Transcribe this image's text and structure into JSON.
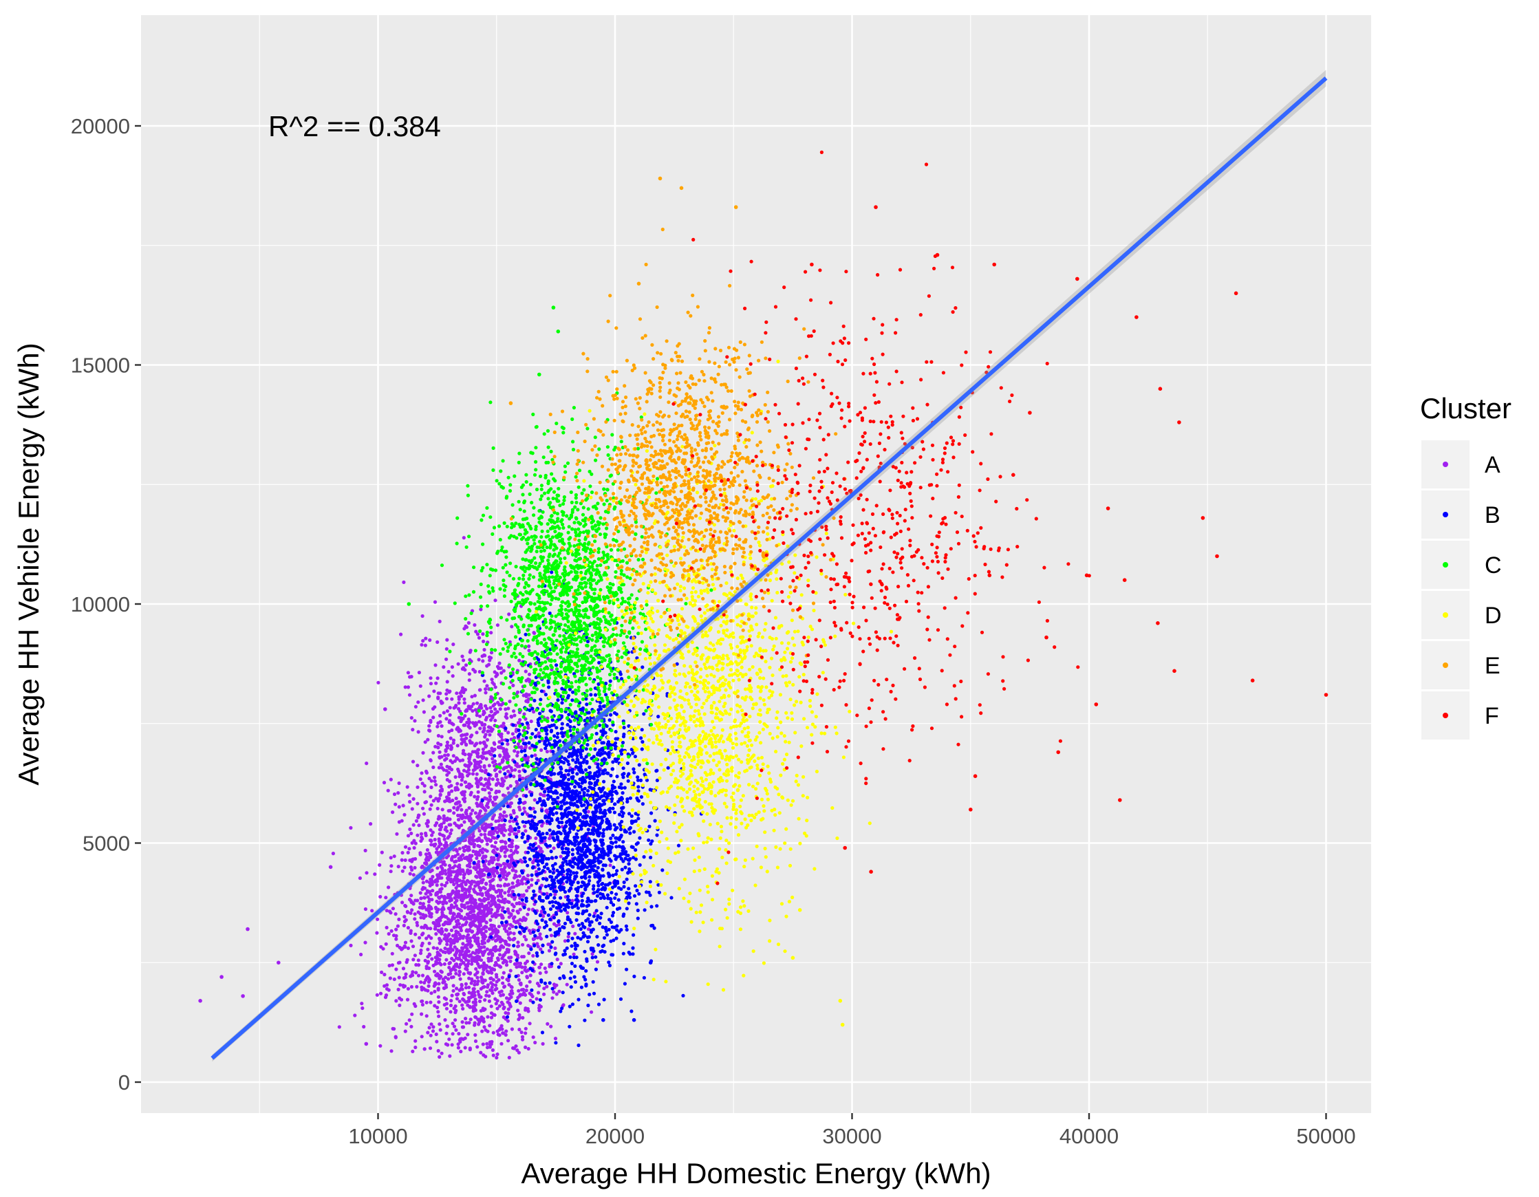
{
  "chart_data": {
    "type": "scatter",
    "title": "",
    "xlabel": "Average HH Domestic Energy (kWh)",
    "ylabel": "Average HH Vehicle Energy (kWh)",
    "xlim": [
      0,
      52000
    ],
    "ylim": [
      -1000,
      22000
    ],
    "x_ticks": [
      10000,
      20000,
      30000,
      40000,
      50000
    ],
    "y_ticks": [
      0,
      5000,
      10000,
      15000,
      20000
    ],
    "x_tick_labels": [
      "10000",
      "20000",
      "30000",
      "40000",
      "50000"
    ],
    "y_tick_labels": [
      "0",
      "5000",
      "10000",
      "15000",
      "20000"
    ],
    "grid": true,
    "legend": {
      "title": "Cluster",
      "placement": "right"
    },
    "annotation": {
      "text": "R^2 ==  0.384",
      "x": 5500,
      "y": 20000
    },
    "trend_line": {
      "x": [
        3000,
        50000
      ],
      "y": [
        500,
        21000
      ],
      "color": "#3366FF"
    },
    "series": [
      {
        "name": "A",
        "color": "#A020F0",
        "clusters": [
          {
            "cx": 14000,
            "cy": 3500,
            "sx": 1700,
            "sy": 1500,
            "n": 2400
          },
          {
            "cx": 14500,
            "cy": 7000,
            "sx": 1400,
            "sy": 1300,
            "n": 900
          }
        ],
        "points": [
          {
            "x": 2500,
            "y": 1700
          },
          {
            "x": 3400,
            "y": 2200
          },
          {
            "x": 4500,
            "y": 3200
          },
          {
            "x": 8000,
            "y": 4500
          },
          {
            "x": 10300,
            "y": 7800
          },
          {
            "x": 4300,
            "y": 1800
          },
          {
            "x": 9500,
            "y": 800
          },
          {
            "x": 5800,
            "y": 2500
          }
        ]
      },
      {
        "name": "B",
        "color": "#0000FF",
        "clusters": [
          {
            "cx": 18500,
            "cy": 5500,
            "sx": 1400,
            "sy": 1600,
            "n": 2000
          }
        ],
        "points": [
          {
            "x": 20800,
            "y": 1300
          },
          {
            "x": 19500,
            "y": 1300
          },
          {
            "x": 21500,
            "y": 2500
          }
        ]
      },
      {
        "name": "C",
        "color": "#00FF00",
        "clusters": [
          {
            "cx": 18000,
            "cy": 10000,
            "sx": 1600,
            "sy": 1500,
            "n": 1700
          }
        ],
        "points": [
          {
            "x": 17400,
            "y": 16200
          },
          {
            "x": 17600,
            "y": 15700
          },
          {
            "x": 16800,
            "y": 14800
          },
          {
            "x": 11300,
            "y": 10000
          }
        ]
      },
      {
        "name": "D",
        "color": "#FFFF00",
        "clusters": [
          {
            "cx": 24000,
            "cy": 8000,
            "sx": 2100,
            "sy": 2000,
            "n": 1600
          }
        ],
        "points": [
          {
            "x": 29600,
            "y": 1200
          },
          {
            "x": 29500,
            "y": 1700
          },
          {
            "x": 27500,
            "y": 2600
          },
          {
            "x": 27800,
            "y": 3600
          }
        ]
      },
      {
        "name": "E",
        "color": "#FFA500",
        "clusters": [
          {
            "cx": 23000,
            "cy": 12500,
            "sx": 2000,
            "sy": 1400,
            "n": 1300
          }
        ],
        "points": [
          {
            "x": 21900,
            "y": 18900
          },
          {
            "x": 22800,
            "y": 18700
          },
          {
            "x": 25100,
            "y": 18300
          },
          {
            "x": 15600,
            "y": 14200
          },
          {
            "x": 21000,
            "y": 16700
          }
        ]
      },
      {
        "name": "F",
        "color": "#FF0000",
        "clusters": [
          {
            "cx": 30500,
            "cy": 11800,
            "sx": 3300,
            "sy": 2300,
            "n": 650
          }
        ],
        "points": [
          {
            "x": 31000,
            "y": 18300
          },
          {
            "x": 33600,
            "y": 17300
          },
          {
            "x": 46200,
            "y": 16500
          },
          {
            "x": 50000,
            "y": 8100
          },
          {
            "x": 46900,
            "y": 8400
          },
          {
            "x": 41300,
            "y": 5900
          },
          {
            "x": 43600,
            "y": 8600
          },
          {
            "x": 38700,
            "y": 6900
          },
          {
            "x": 45400,
            "y": 11000
          },
          {
            "x": 42000,
            "y": 16000
          },
          {
            "x": 40300,
            "y": 7900
          },
          {
            "x": 35000,
            "y": 5700
          },
          {
            "x": 35200,
            "y": 6400
          },
          {
            "x": 30800,
            "y": 4400
          },
          {
            "x": 29700,
            "y": 4900
          },
          {
            "x": 28300,
            "y": 17100
          },
          {
            "x": 36000,
            "y": 17100
          },
          {
            "x": 39500,
            "y": 16800
          },
          {
            "x": 43000,
            "y": 14500
          },
          {
            "x": 44800,
            "y": 11800
          },
          {
            "x": 42900,
            "y": 9600
          },
          {
            "x": 37500,
            "y": 14000
          },
          {
            "x": 40800,
            "y": 12000
          },
          {
            "x": 41500,
            "y": 10500
          },
          {
            "x": 43800,
            "y": 13800
          },
          {
            "x": 39900,
            "y": 10600
          },
          {
            "x": 36800,
            "y": 12700
          },
          {
            "x": 38200,
            "y": 9300
          },
          {
            "x": 35800,
            "y": 10600
          }
        ]
      }
    ]
  }
}
